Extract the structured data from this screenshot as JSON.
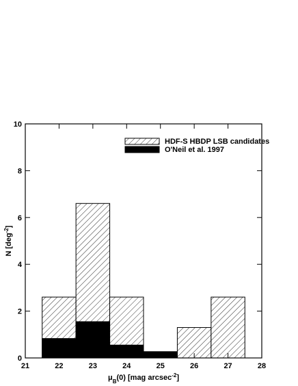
{
  "chart_data": {
    "type": "histogram",
    "bins": [
      21.5,
      22.5,
      23.5,
      24.5,
      25.5,
      26.5,
      27.5
    ],
    "series": [
      {
        "name": "HDF-S HBDP LSB candidates",
        "color": "#000000",
        "fill": "hatch",
        "values": [
          2.6,
          6.6,
          2.6,
          0,
          1.3,
          2.6
        ]
      },
      {
        "name": "O'Neil et al. 1997",
        "color": "#000000",
        "fill": "solid",
        "values": [
          0.83,
          1.55,
          0.55,
          0.27,
          0,
          0
        ]
      }
    ],
    "xlim": [
      21,
      28
    ],
    "xticks": [
      21,
      22,
      23,
      24,
      25,
      26,
      27,
      28
    ],
    "ylim": [
      0,
      10
    ],
    "yticks": [
      0,
      2,
      4,
      6,
      8,
      10
    ],
    "xlabel": [
      {
        "text": "μ"
      },
      {
        "text": "B",
        "shift": "sub"
      },
      {
        "text": "(0) [mag arcsec"
      },
      {
        "text": "-2",
        "shift": "super"
      },
      {
        "text": "]"
      }
    ],
    "ylabel": [
      {
        "text": "N [deg"
      },
      {
        "text": "-2",
        "shift": "super"
      },
      {
        "text": "]"
      }
    ],
    "legend": "upper right"
  }
}
